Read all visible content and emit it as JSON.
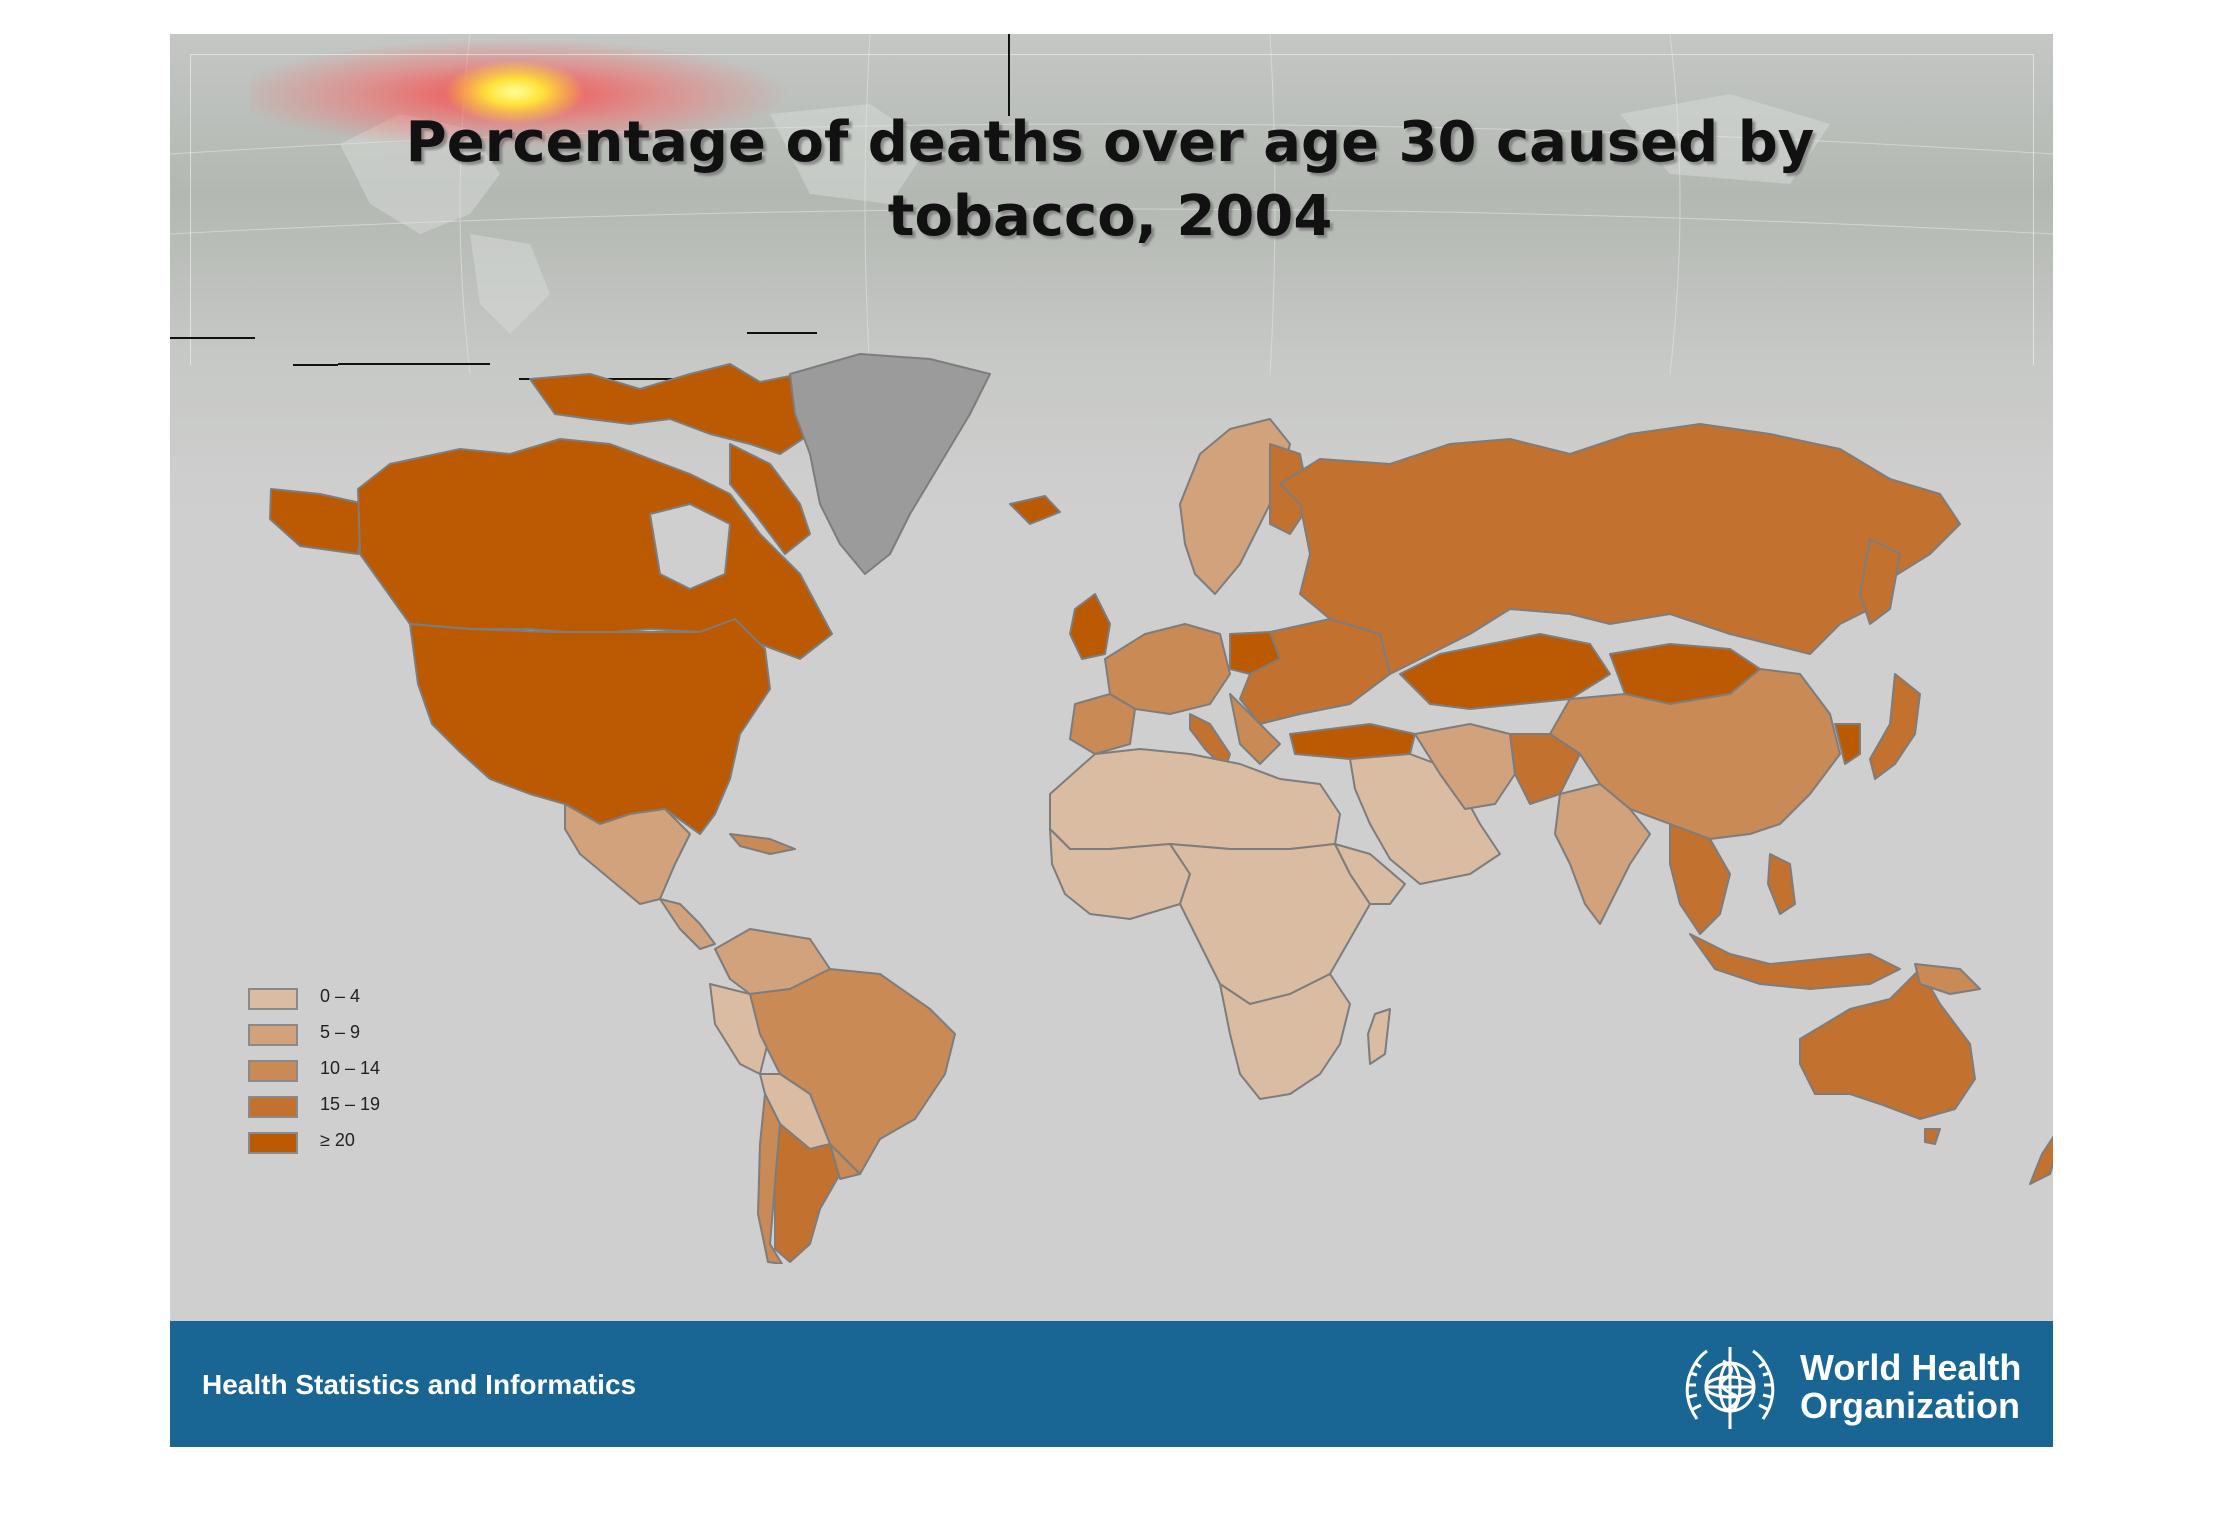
{
  "title": "Percentage of deaths over age 30 caused by tobacco, 2004",
  "legend": {
    "items": [
      {
        "label": "0 – 4",
        "color": "#d9bca2"
      },
      {
        "label": "5 – 9",
        "color": "#d1a27b"
      },
      {
        "label": "10 – 14",
        "color": "#c98a56"
      },
      {
        "label": "15 – 19",
        "color": "#c2712f"
      },
      {
        "label": "≥ 20",
        "color": "#bc5a04"
      }
    ],
    "no_data_color": "#9b9b9b"
  },
  "footer": {
    "text": "Health Statistics and Informatics",
    "org_line1": "World Health",
    "org_line2": "Organization",
    "background": "#196695"
  },
  "colors": {
    "ocean": "#cfcfcf",
    "border": "#7d7d7d"
  },
  "icons": [
    "who-emblem-icon"
  ]
}
